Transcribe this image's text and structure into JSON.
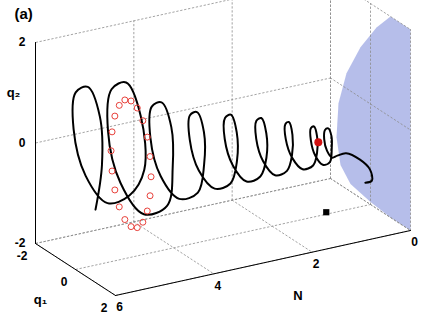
{
  "chart_data": {
    "type": "line",
    "title": "(a)",
    "x_label": "N",
    "y_label": "q₁",
    "z_label": "q₂",
    "xlim": [
      0,
      6
    ],
    "xticks": [
      0,
      2,
      4,
      6
    ],
    "ylim": [
      -2,
      2
    ],
    "yticks": [
      -2,
      0,
      2
    ],
    "zlim": [
      -2,
      2
    ],
    "zticks": [
      -2,
      0,
      2
    ],
    "grid": true,
    "series": [
      {
        "type": "area",
        "color": "#a9b3e6",
        "values": [
          [
            0,
            2,
            2
          ],
          [
            0,
            1,
            2
          ],
          [
            0,
            0.3,
            1.6
          ],
          [
            0,
            -0.5,
            1.0
          ],
          [
            0,
            -1.2,
            0.3
          ],
          [
            0,
            -1.6,
            -0.4
          ],
          [
            0,
            -1.7,
            -1.1
          ],
          [
            0,
            -1.5,
            -1.6
          ],
          [
            0,
            -1.0,
            -1.85
          ],
          [
            0,
            0,
            -1.95
          ],
          [
            0,
            1,
            -2
          ],
          [
            0,
            2,
            -2
          ]
        ]
      },
      {
        "type": "line",
        "color": "#000000",
        "line_style": "solid",
        "values": [
          [
            6.0,
            1.0,
            -0.55
          ],
          [
            5.95,
            1.2,
            0.38
          ],
          [
            5.85,
            0.85,
            1.23
          ],
          [
            5.75,
            0.0,
            1.58
          ],
          [
            5.65,
            -0.85,
            1.23
          ],
          [
            5.55,
            -1.2,
            0.38
          ],
          [
            5.45,
            -0.85,
            -0.47
          ],
          [
            5.35,
            0.0,
            -0.82
          ],
          [
            5.25,
            0.85,
            -0.47
          ],
          [
            5.15,
            1.35,
            0.15
          ],
          [
            5.06,
            0.95,
            1.1
          ],
          [
            4.97,
            0.0,
            1.5
          ],
          [
            4.88,
            -0.95,
            1.1
          ],
          [
            4.79,
            -1.35,
            0.15
          ],
          [
            4.7,
            -0.95,
            -0.8
          ],
          [
            4.61,
            0.0,
            -1.2
          ],
          [
            4.52,
            0.95,
            -0.8
          ],
          [
            4.43,
            1.0,
            -0.05
          ],
          [
            4.34,
            0.71,
            0.66
          ],
          [
            4.25,
            0.0,
            0.95
          ],
          [
            4.16,
            -0.71,
            0.66
          ],
          [
            4.07,
            -1.0,
            -0.05
          ],
          [
            3.98,
            -0.71,
            -0.76
          ],
          [
            3.89,
            0.0,
            -1.05
          ],
          [
            3.8,
            0.71,
            -0.76
          ],
          [
            3.71,
            0.8,
            -0.2
          ],
          [
            3.62,
            0.57,
            0.37
          ],
          [
            3.53,
            0.0,
            0.6
          ],
          [
            3.44,
            -0.57,
            0.37
          ],
          [
            3.35,
            -0.8,
            -0.2
          ],
          [
            3.26,
            -0.57,
            -0.77
          ],
          [
            3.17,
            0.0,
            -1.0
          ],
          [
            3.08,
            0.57,
            -0.77
          ],
          [
            3.0,
            0.7,
            -0.3
          ],
          [
            2.92,
            0.49,
            0.19
          ],
          [
            2.84,
            0.0,
            0.4
          ],
          [
            2.76,
            -0.49,
            0.19
          ],
          [
            2.68,
            -0.7,
            -0.3
          ],
          [
            2.6,
            -0.49,
            -0.79
          ],
          [
            2.52,
            0.0,
            -1.0
          ],
          [
            2.44,
            0.49,
            -0.79
          ],
          [
            2.36,
            0.6,
            -0.4
          ],
          [
            2.29,
            0.42,
            0.02
          ],
          [
            2.22,
            0.0,
            0.2
          ],
          [
            2.15,
            -0.42,
            0.02
          ],
          [
            2.08,
            -0.6,
            -0.4
          ],
          [
            2.01,
            -0.42,
            -0.82
          ],
          [
            1.94,
            0.0,
            -1.0
          ],
          [
            1.87,
            0.42,
            -0.82
          ],
          [
            1.8,
            0.5,
            -0.5
          ],
          [
            1.73,
            0.35,
            -0.15
          ],
          [
            1.66,
            0.0,
            0.0
          ],
          [
            1.59,
            -0.35,
            -0.15
          ],
          [
            1.52,
            -0.5,
            -0.5
          ],
          [
            1.45,
            -0.35,
            -0.85
          ],
          [
            1.38,
            0.0,
            -1.0
          ],
          [
            1.31,
            0.35,
            -0.85
          ],
          [
            1.25,
            0.4,
            -0.6
          ],
          [
            1.2,
            0.28,
            -0.32
          ],
          [
            1.15,
            0.0,
            -0.2
          ],
          [
            1.1,
            -0.28,
            -0.32
          ],
          [
            1.05,
            -0.4,
            -0.6
          ],
          [
            1.01,
            -0.28,
            -0.88
          ],
          [
            0.97,
            0.0,
            -1.0
          ],
          [
            0.94,
            0.28,
            -0.88
          ],
          [
            0.91,
            0.3,
            -0.6
          ],
          [
            0.88,
            0.21,
            -0.39
          ],
          [
            0.86,
            0.0,
            -0.3
          ],
          [
            0.84,
            -0.21,
            -0.39
          ],
          [
            0.82,
            -0.3,
            -0.6
          ],
          [
            0.8,
            -0.21,
            -0.81
          ],
          [
            0.78,
            0.0,
            -0.9
          ],
          [
            0.76,
            0.21,
            -0.81
          ],
          [
            0.7,
            0.5,
            -0.7
          ],
          [
            0.58,
            0.9,
            -0.75
          ],
          [
            0.48,
            1.15,
            -0.9
          ],
          [
            0.42,
            1.1,
            -1.15
          ],
          [
            0.45,
            0.85,
            -1.25
          ]
        ]
      },
      {
        "type": "scatter",
        "color": "#e8403a",
        "marker": "circle",
        "values": [
          [
            4.87,
            1.0,
            -0.14
          ],
          [
            4.87,
            0.95,
            0.25
          ],
          [
            4.87,
            0.81,
            0.6
          ],
          [
            4.87,
            0.59,
            0.87
          ],
          [
            4.87,
            0.31,
            1.05
          ],
          [
            4.87,
            0.0,
            1.11
          ],
          [
            4.87,
            -0.31,
            1.05
          ],
          [
            4.87,
            -0.59,
            0.87
          ],
          [
            4.87,
            -0.81,
            0.6
          ],
          [
            4.87,
            -0.95,
            0.25
          ],
          [
            4.87,
            -1.0,
            -0.14
          ],
          [
            4.87,
            -0.95,
            -0.53
          ],
          [
            4.87,
            -0.81,
            -0.87
          ],
          [
            4.87,
            -0.59,
            -1.15
          ],
          [
            4.87,
            -0.31,
            -1.33
          ],
          [
            4.87,
            0.0,
            -1.39
          ],
          [
            4.87,
            0.31,
            -1.33
          ],
          [
            4.87,
            0.59,
            -1.15
          ],
          [
            4.87,
            0.81,
            -0.87
          ],
          [
            4.87,
            0.95,
            -0.53
          ]
        ]
      },
      {
        "type": "scatter",
        "color": "#d01010",
        "marker": "dot",
        "values": [
          [
            0.98,
            -0.2,
            -0.6
          ]
        ]
      },
      {
        "type": "scatter",
        "color": "#000000",
        "marker": "square",
        "values": [
          [
            0.9,
            0.0,
            -1.96
          ]
        ]
      }
    ]
  }
}
